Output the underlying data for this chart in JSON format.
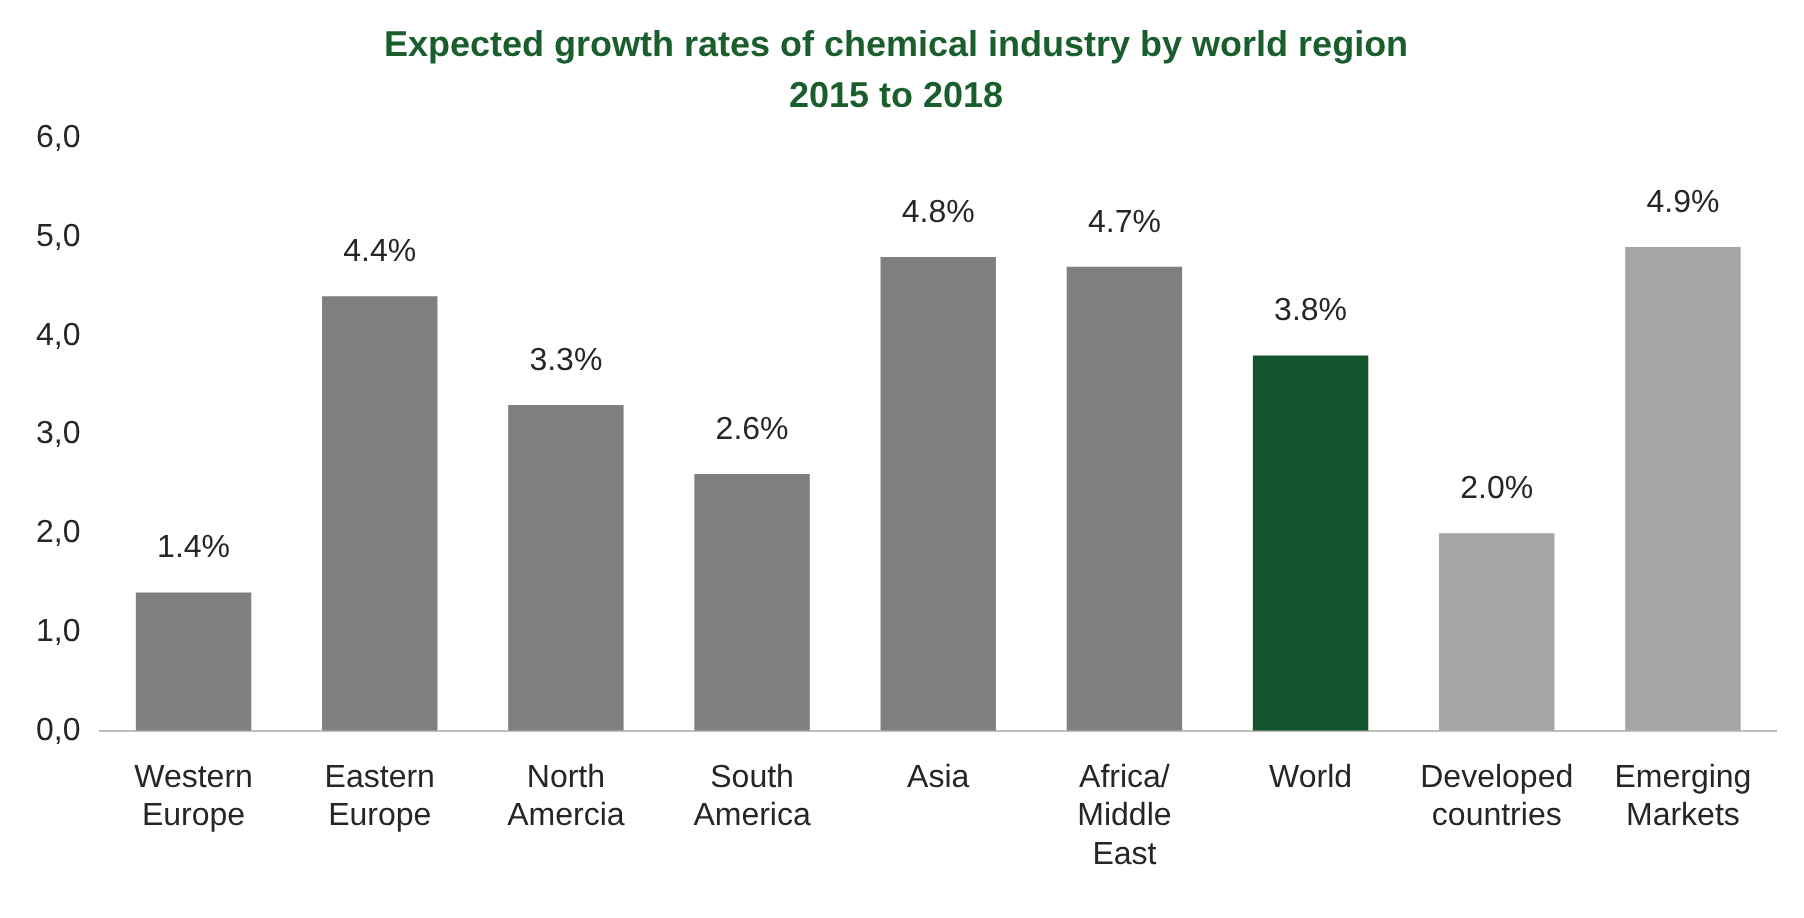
{
  "chart_data": {
    "type": "bar",
    "title": "Expected growth rates of chemical industry by world region",
    "subtitle": "2015 to 2018",
    "categories": [
      "Western Europe",
      "Eastern Europe",
      "North Amercia",
      "South America",
      "Asia",
      "Africa/ Middle East",
      "World",
      "Developed countries",
      "Emerging Markets"
    ],
    "values": [
      1.4,
      4.4,
      3.3,
      2.6,
      4.8,
      4.7,
      3.8,
      2.0,
      4.9
    ],
    "colors": [
      "#7f7f7f",
      "#7f7f7f",
      "#7f7f7f",
      "#7f7f7f",
      "#7f7f7f",
      "#7f7f7f",
      "#12552c",
      "#a5a5a5",
      "#a5a5a5"
    ],
    "value_labels": [
      "1.4%",
      "4.4%",
      "3.3%",
      "2.6%",
      "4.8%",
      "4.7%",
      "3.8%",
      "2.0%",
      "4.9%"
    ],
    "ylim": [
      0,
      6
    ],
    "yticks": [
      {
        "value": 0,
        "label": "0,0"
      },
      {
        "value": 1,
        "label": "1,0"
      },
      {
        "value": 2,
        "label": "2,0"
      },
      {
        "value": 3,
        "label": "3,0"
      },
      {
        "value": 4,
        "label": "4,0"
      },
      {
        "value": 5,
        "label": "5,0"
      },
      {
        "value": 6,
        "label": "6,0"
      }
    ],
    "grid": false,
    "legend": false
  }
}
